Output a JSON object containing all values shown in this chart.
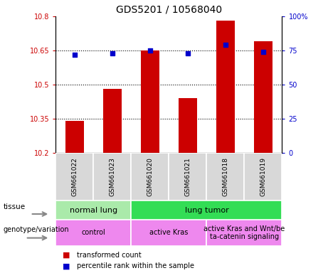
{
  "title": "GDS5201 / 10568040",
  "samples": [
    "GSM661022",
    "GSM661023",
    "GSM661020",
    "GSM661021",
    "GSM661018",
    "GSM661019"
  ],
  "red_values": [
    10.34,
    10.48,
    10.65,
    10.44,
    10.78,
    10.69
  ],
  "blue_values": [
    72,
    73,
    75,
    73,
    79,
    74
  ],
  "ylim_left": [
    10.2,
    10.8
  ],
  "ylim_right": [
    0,
    100
  ],
  "yticks_left": [
    10.2,
    10.35,
    10.5,
    10.65,
    10.8
  ],
  "yticks_right": [
    0,
    25,
    50,
    75,
    100
  ],
  "ytick_labels_left": [
    "10.2",
    "10.35",
    "10.5",
    "10.65",
    "10.8"
  ],
  "ytick_labels_right": [
    "0",
    "25",
    "50",
    "75",
    "100%"
  ],
  "tissue_groups": [
    {
      "label": "normal lung",
      "start": 0,
      "end": 2,
      "color": "#aaeaaa"
    },
    {
      "label": "lung tumor",
      "start": 2,
      "end": 6,
      "color": "#33dd55"
    }
  ],
  "genotype_groups": [
    {
      "label": "control",
      "start": 0,
      "end": 2,
      "color": "#ee88ee"
    },
    {
      "label": "active Kras",
      "start": 2,
      "end": 4,
      "color": "#ee88ee"
    },
    {
      "label": "active Kras and Wnt/be\nta-catenin signaling",
      "start": 4,
      "end": 6,
      "color": "#ee88ee"
    }
  ],
  "legend_items": [
    {
      "label": "transformed count",
      "color": "#CC0000"
    },
    {
      "label": "percentile rank within the sample",
      "color": "#0000CC"
    }
  ],
  "bar_color": "#CC0000",
  "dot_color": "#0000CC",
  "bar_width": 0.5,
  "tissue_row_label": "tissue",
  "genotype_row_label": "genotype/variation",
  "sample_bg_color": "#d8d8d8",
  "arrow_color": "#888888"
}
